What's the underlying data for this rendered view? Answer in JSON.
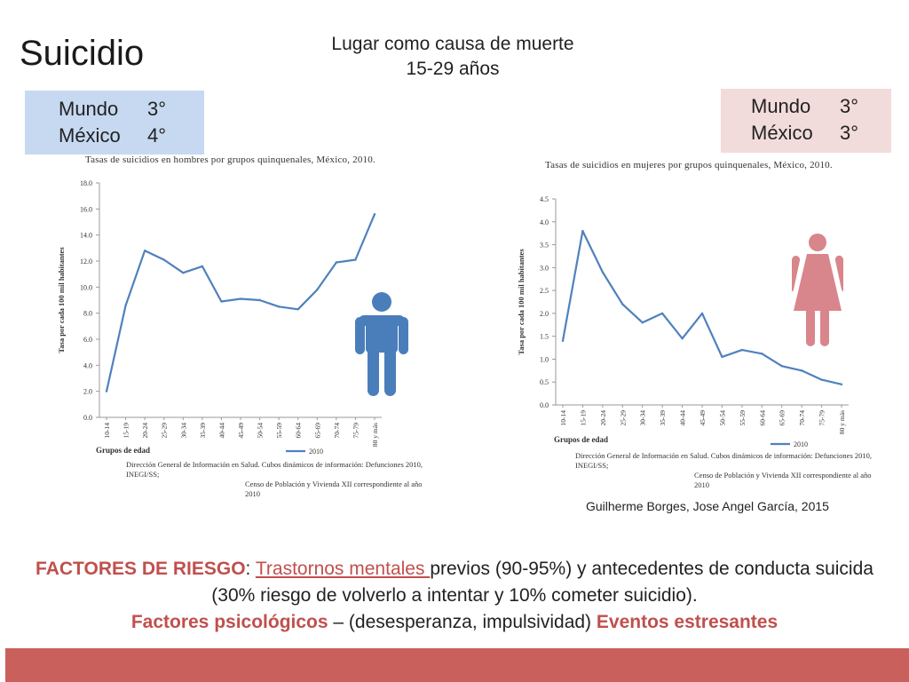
{
  "title": "Suicidio",
  "subtitle": {
    "line1": "Lugar como causa de muerte",
    "line2": "15-29 años"
  },
  "rank_men": {
    "world_label": "Mundo",
    "world_rank": "3°",
    "mexico_label": "México",
    "mexico_rank": "4°"
  },
  "rank_women": {
    "world_label": "Mundo",
    "world_rank": "3°",
    "mexico_label": "México",
    "mexico_rank": "3°"
  },
  "citation": "Guilherme Borges, Jose Angel García, 2015",
  "risk_text": {
    "label": "FACTORES DE RIESGO",
    "sep1": ": ",
    "link1": "Trastornos mentales ",
    "part1": "previos (90-95%) y antecedentes de conducta suicida (30% riesgo de volverlo a intentar y 10% cometer suicidio).",
    "label2": "Factores psicológicos",
    "part2": " – (desesperanza, impulsividad) ",
    "label3": "Eventos estresantes"
  },
  "colors": {
    "line": "#4f81bd",
    "men_icon": "#4a7ebb",
    "women_icon": "#d9858c",
    "accent": "#c0504d",
    "bar": "#c9605c"
  },
  "chart_data": [
    {
      "type": "line",
      "title": "Tasas de suicidios en hombres por grupos quinquenales, México, 2010.",
      "xlabel": "Grupos de edad",
      "ylabel": "Tasa por cada 100 mil habitantes",
      "categories": [
        "10-14",
        "15-19",
        "20-24",
        "25-29",
        "30-34",
        "35-39",
        "40-44",
        "45-49",
        "50-54",
        "55-59",
        "60-64",
        "65-69",
        "70-74",
        "75-79",
        "80 y más"
      ],
      "series": [
        {
          "name": "2010",
          "values": [
            2.0,
            8.6,
            12.8,
            12.1,
            11.1,
            11.6,
            8.9,
            9.1,
            9.0,
            8.5,
            8.3,
            9.8,
            11.9,
            12.1,
            15.6
          ]
        }
      ],
      "ylim": [
        0,
        18
      ],
      "yticks": [
        "0.0",
        "2.0",
        "4.0",
        "6.0",
        "8.0",
        "10.0",
        "12.0",
        "14.0",
        "16.0",
        "18.0"
      ],
      "source": [
        "Dirección General de Información en Salud. Cubos dinámicos de información: Defunciones 2010, INEGI/SS;",
        "Censo de Población y Vivienda XII correspondiente al año 2010"
      ]
    },
    {
      "type": "line",
      "title": "Tasas de suicidios en mujeres por grupos quinquenales, México, 2010.",
      "xlabel": "Grupos de edad",
      "ylabel": "Tasa por cada 100 mil habitantes",
      "categories": [
        "10-14",
        "15-19",
        "20-24",
        "25-29",
        "30-34",
        "35-39",
        "40-44",
        "45-49",
        "50-54",
        "55-59",
        "60-64",
        "65-69",
        "70-74",
        "75-79",
        "80 y más"
      ],
      "series": [
        {
          "name": "2010",
          "values": [
            1.4,
            3.8,
            2.9,
            2.2,
            1.8,
            2.0,
            1.45,
            2.0,
            1.05,
            1.2,
            1.12,
            0.85,
            0.75,
            0.55,
            0.45
          ]
        }
      ],
      "ylim": [
        0,
        4.5
      ],
      "yticks": [
        "0.0",
        "0.5",
        "1.0",
        "1.5",
        "2.0",
        "2.5",
        "3.0",
        "3.5",
        "4.0",
        "4.5"
      ],
      "source": [
        "Dirección General de Información en Salud. Cubos dinámicos de información: Defunciones 2010, INEGI/SS;",
        "Censo de Población y Vivienda XII correspondiente al año 2010"
      ]
    }
  ]
}
